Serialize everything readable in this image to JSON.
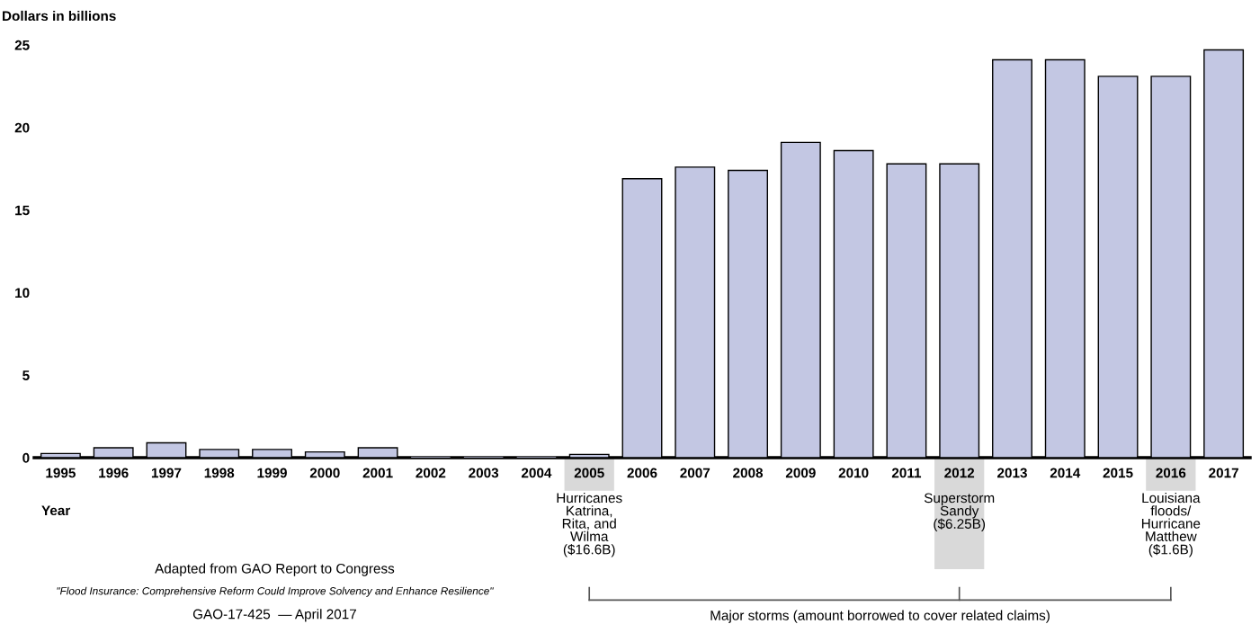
{
  "chart_data": {
    "type": "bar",
    "ylabel": "Dollars in billions",
    "xlabel": "Year",
    "categories": [
      "1995",
      "1996",
      "1997",
      "1998",
      "1999",
      "2000",
      "2001",
      "2002",
      "2003",
      "2004",
      "2005",
      "2006",
      "2007",
      "2008",
      "2009",
      "2010",
      "2011",
      "2012",
      "2013",
      "2014",
      "2015",
      "2016",
      "2017"
    ],
    "values": [
      0.25,
      0.6,
      0.9,
      0.5,
      0.5,
      0.35,
      0.6,
      0,
      0,
      0,
      0.2,
      16.9,
      17.6,
      17.4,
      19.1,
      18.6,
      17.8,
      17.8,
      24.1,
      24.1,
      23.1,
      23.1,
      24.7
    ],
    "color": "#c3c7e3",
    "ylim": [
      0,
      25
    ],
    "yticks": [
      0,
      5,
      10,
      15,
      20,
      25
    ],
    "grid": false,
    "legend": false,
    "annotations": [
      "Hurricanes\nKatrina,\nRita, and\nWilma\n($16.6B)",
      "Superstorm\nSandy\n($6.25B)",
      "Louisiana\nfloods/\nHurricane\nMatthew\n($1.6B)",
      "Major storms (amount borrowed to cover related claims)",
      "Adapted from GAO Report to Congress",
      "\"Flood Insurance: Comprehensive Reform Could Improve Solvency and Enhance Resilience\"",
      "GAO-17-425  — April 2017"
    ]
  }
}
